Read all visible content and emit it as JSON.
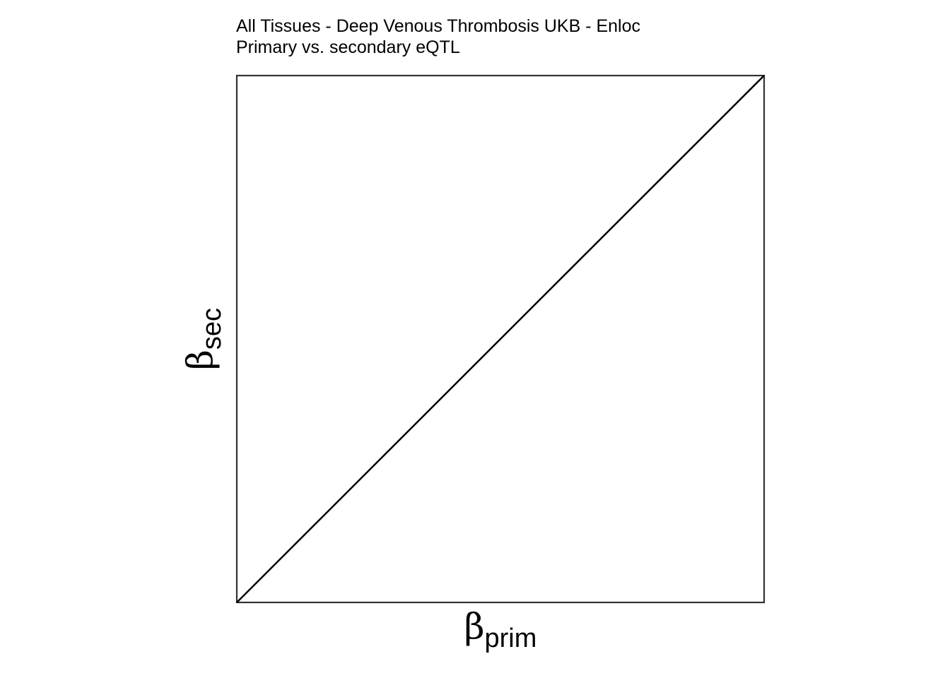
{
  "chart_data": {
    "type": "scatter",
    "title": "All Tissues - Deep Venous Thrombosis UKB - Enloc",
    "subtitle": "Primary vs. secondary eQTL",
    "xlabel": {
      "symbol": "β",
      "subscript": "prim"
    },
    "ylabel": {
      "symbol": "β",
      "subscript": "sec"
    },
    "points": [],
    "reference_line": {
      "type": "identity",
      "slope": 1,
      "intercept": 0
    },
    "grid": false,
    "legend": "none",
    "colors": {
      "frame": "#333333",
      "line": "#000000",
      "background": "#ffffff"
    }
  }
}
